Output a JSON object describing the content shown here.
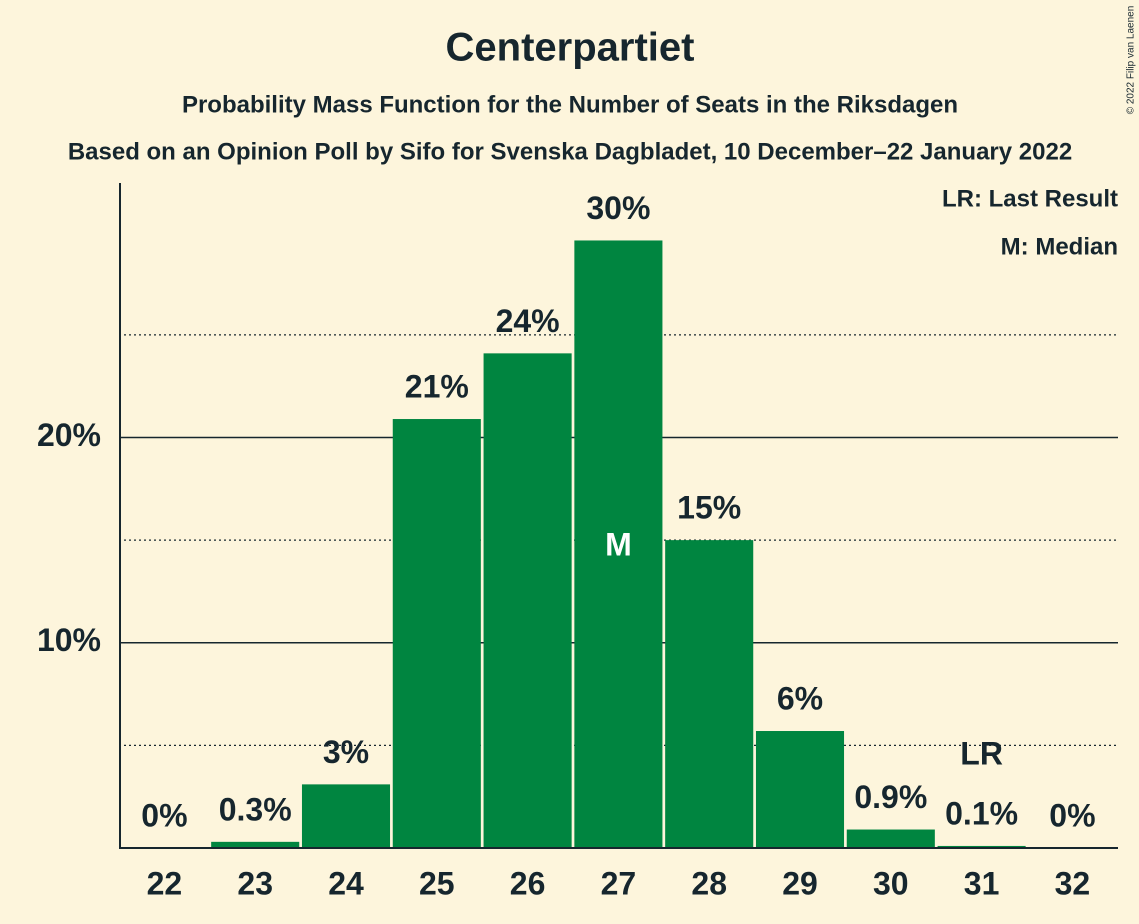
{
  "chart_data": {
    "type": "bar",
    "title": "Centerpartiet",
    "subtitle": "Probability Mass Function for the Number of Seats in the Riksdagen",
    "subtitle2": "Based on an Opinion Poll by Sifo for Svenska Dagbladet, 10 December–22 January 2022",
    "legend": [
      "LR: Last Result",
      "M: Median"
    ],
    "copyright": "© 2022 Filip van Laenen",
    "categories": [
      22,
      23,
      24,
      25,
      26,
      27,
      28,
      29,
      30,
      31,
      32
    ],
    "values": [
      0,
      0.3,
      3.1,
      20.9,
      24.1,
      29.6,
      15.0,
      5.7,
      0.9,
      0.1,
      0
    ],
    "value_labels": [
      "0%",
      "0.3%",
      "3%",
      "21%",
      "24%",
      "30%",
      "15%",
      "6%",
      "0.9%",
      "0.1%",
      "0%"
    ],
    "color": "#008540",
    "median": 27,
    "median_label": "M",
    "last_result": 31,
    "last_result_label": "LR",
    "ylim": [
      0,
      32.4
    ],
    "yticks": [
      {
        "value": 10,
        "label": "10%"
      },
      {
        "value": 20,
        "label": "20%"
      }
    ],
    "minor_yticks": [
      5,
      15,
      25
    ],
    "grid": true
  }
}
